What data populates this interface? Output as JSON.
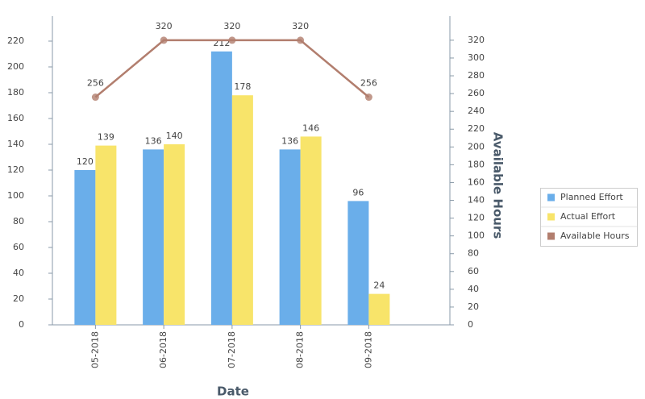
{
  "chart_data": {
    "type": "bar",
    "x_label": "Date",
    "y2_label": "Available Hours",
    "categories": [
      "05-2018",
      "06-2018",
      "07-2018",
      "08-2018",
      "09-2018"
    ],
    "series": [
      {
        "name": "Planned Effort",
        "color": "#6aaeea",
        "values": [
          120,
          136,
          212,
          136,
          96
        ]
      },
      {
        "name": "Actual Effort",
        "color": "#f8e46a",
        "values": [
          139,
          140,
          178,
          146,
          24
        ]
      },
      {
        "name": "Available Hours",
        "type": "line",
        "axis": "y2",
        "color": "#b27e6e",
        "values": [
          256,
          320,
          320,
          320,
          256
        ]
      }
    ],
    "ylim": [
      0,
      240
    ],
    "yticks": [
      0,
      20,
      40,
      60,
      80,
      100,
      120,
      140,
      160,
      180,
      200,
      220
    ],
    "y2lim": [
      0,
      348
    ],
    "y2ticks": [
      0,
      20,
      40,
      60,
      80,
      100,
      120,
      140,
      160,
      180,
      200,
      220,
      240,
      260,
      280,
      300,
      320
    ],
    "legend": "right"
  }
}
